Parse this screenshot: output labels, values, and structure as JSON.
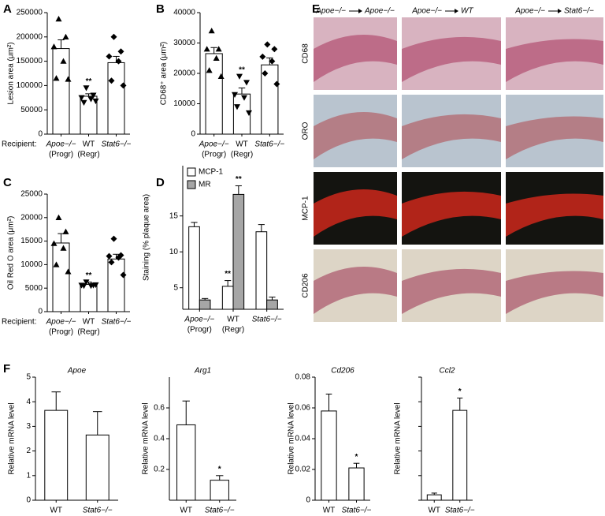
{
  "chart_data": [
    {
      "type": "bar",
      "panel": "A",
      "y_label": "Lesion area (μm²)",
      "x_label": "Recipient:",
      "categories": [
        "Apoe−/−",
        "WT",
        "Stat6−/−"
      ],
      "category_notes": [
        "(Progr)",
        "(Regr)",
        null
      ],
      "values": [
        176000,
        78000,
        147000
      ],
      "errors": [
        18000,
        5000,
        13000
      ],
      "points": [
        [
          237000,
          200000,
          180000,
          150000,
          115000,
          113000
        ],
        [
          95000,
          80000,
          75000,
          72000,
          65000,
          68000
        ],
        [
          200000,
          170000,
          160000,
          150000,
          110000,
          100000
        ]
      ],
      "markers": [
        "triangle",
        "triangle-down",
        "diamond"
      ],
      "color": "#ffffff",
      "annotations": [
        null,
        "**",
        null
      ],
      "ylim": [
        0,
        250000
      ],
      "yticks": [
        0,
        50000,
        100000,
        150000,
        200000,
        250000
      ]
    },
    {
      "type": "bar",
      "panel": "B",
      "y_label": "CD68⁺ area (μm²)",
      "categories": [
        "Apoe−/−",
        "WT",
        "Stat6−/−"
      ],
      "category_notes": [
        "(Progr)",
        "(Regr)",
        null
      ],
      "values": [
        26500,
        13200,
        22800
      ],
      "errors": [
        2000,
        2000,
        2300
      ],
      "points": [
        [
          34000,
          28000,
          28000,
          25000,
          21000,
          19000
        ],
        [
          19000,
          17000,
          13000,
          12000,
          9000,
          7000
        ],
        [
          29500,
          28000,
          25500,
          24000,
          20000,
          16500
        ]
      ],
      "markers": [
        "triangle",
        "triangle-down",
        "diamond"
      ],
      "color": "#ffffff",
      "annotations": [
        null,
        "**",
        null
      ],
      "ylim": [
        0,
        40000
      ],
      "yticks": [
        0,
        10000,
        20000,
        30000,
        40000
      ]
    },
    {
      "type": "bar",
      "panel": "C",
      "y_label": "Oil Red O area (μm²)",
      "x_label": "Recipient:",
      "categories": [
        "Apoe−/−",
        "WT",
        "Stat6−/−"
      ],
      "category_notes": [
        "(Progr)",
        "(Regr)",
        null
      ],
      "values": [
        14600,
        5800,
        11200
      ],
      "errors": [
        2000,
        500,
        1000
      ],
      "points": [
        [
          20000,
          17000,
          14500,
          13500,
          10000,
          8500
        ],
        [
          6300,
          5600,
          5600,
          5500,
          5500,
          5700
        ],
        [
          15500,
          12000,
          11800,
          11500,
          10500,
          7800
        ]
      ],
      "markers": [
        "triangle",
        "triangle-down",
        "diamond"
      ],
      "color": "#ffffff",
      "annotations": [
        null,
        "**",
        null
      ],
      "ylim": [
        0,
        25000
      ],
      "yticks": [
        0,
        5000,
        10000,
        15000,
        20000,
        25000
      ]
    },
    {
      "type": "grouped_bar",
      "panel": "D",
      "y_label": "Staining (% plaque area)",
      "categories": [
        "Apoe−/−",
        "WT",
        "Stat6−/−"
      ],
      "category_notes": [
        "(Progr)",
        "(Regr)",
        null
      ],
      "series": [
        {
          "name": "MCP-1",
          "color": "#ffffff",
          "values": [
            13.5,
            5.2,
            12.8
          ],
          "errors": [
            0.6,
            0.8,
            1.0
          ],
          "annotations": [
            null,
            "**",
            null
          ]
        },
        {
          "name": "MR",
          "color": "#a6a6a6",
          "values": [
            3.3,
            18,
            3.3
          ],
          "errors": [
            0.2,
            1.2,
            0.4
          ],
          "annotations": [
            null,
            "**",
            null
          ]
        }
      ],
      "legend": "top-left",
      "ylim": [
        2,
        22
      ],
      "yticks": [
        5,
        10,
        15
      ]
    },
    {
      "type": "bar",
      "panel": "F",
      "title": "Apoe",
      "y_label": "Relative mRNA level",
      "categories": [
        "WT",
        "Stat6−/−"
      ],
      "values": [
        3.65,
        2.65
      ],
      "errors": [
        0.75,
        0.95
      ],
      "color": "#ffffff",
      "ylim": [
        0,
        5
      ],
      "yticks": [
        0,
        1,
        2,
        3,
        4,
        5
      ]
    },
    {
      "type": "bar",
      "title": "Arg1",
      "y_label": "Relative mRNA level",
      "categories": [
        "WT",
        "Stat6−/−"
      ],
      "values": [
        0.49,
        0.13
      ],
      "errors": [
        0.155,
        0.03
      ],
      "color": "#ffffff",
      "annotations": [
        null,
        "*"
      ],
      "ylim": [
        0,
        0.8
      ],
      "yticks": [
        0.2,
        0.4,
        0.6
      ]
    },
    {
      "type": "bar",
      "title": "Cd206",
      "y_label": "Relative mRNA level",
      "categories": [
        "WT",
        "Stat6−/−"
      ],
      "values": [
        0.058,
        0.021
      ],
      "errors": [
        0.011,
        0.003
      ],
      "color": "#ffffff",
      "annotations": [
        null,
        "*"
      ],
      "ylim": [
        0,
        0.08
      ],
      "yticks": [
        0,
        0.02,
        0.04,
        0.06,
        0.08
      ]
    },
    {
      "type": "bar",
      "title": "Ccl2",
      "y_label": "Relative mRNA level",
      "categories": [
        "WT",
        "Stat6−/−"
      ],
      "values": [
        0.22,
        3.65
      ],
      "errors": [
        0.07,
        0.5
      ],
      "color": "#ffffff",
      "annotations": [
        null,
        "*"
      ],
      "ylim": [
        0,
        5
      ],
      "yticks": [
        0,
        1,
        2,
        3,
        4,
        5
      ],
      "tick_labels": false
    }
  ],
  "micrographs": {
    "panel": "E",
    "columns": [
      {
        "donor": "Apoe−/−",
        "recipient": "Apoe−/−"
      },
      {
        "donor": "Apoe−/−",
        "recipient": "WT"
      },
      {
        "donor": "Apoe−/−",
        "recipient": "Stat6−/−"
      }
    ],
    "rows": [
      "CD68",
      "ORO",
      "MCP-1",
      "CD206"
    ]
  }
}
